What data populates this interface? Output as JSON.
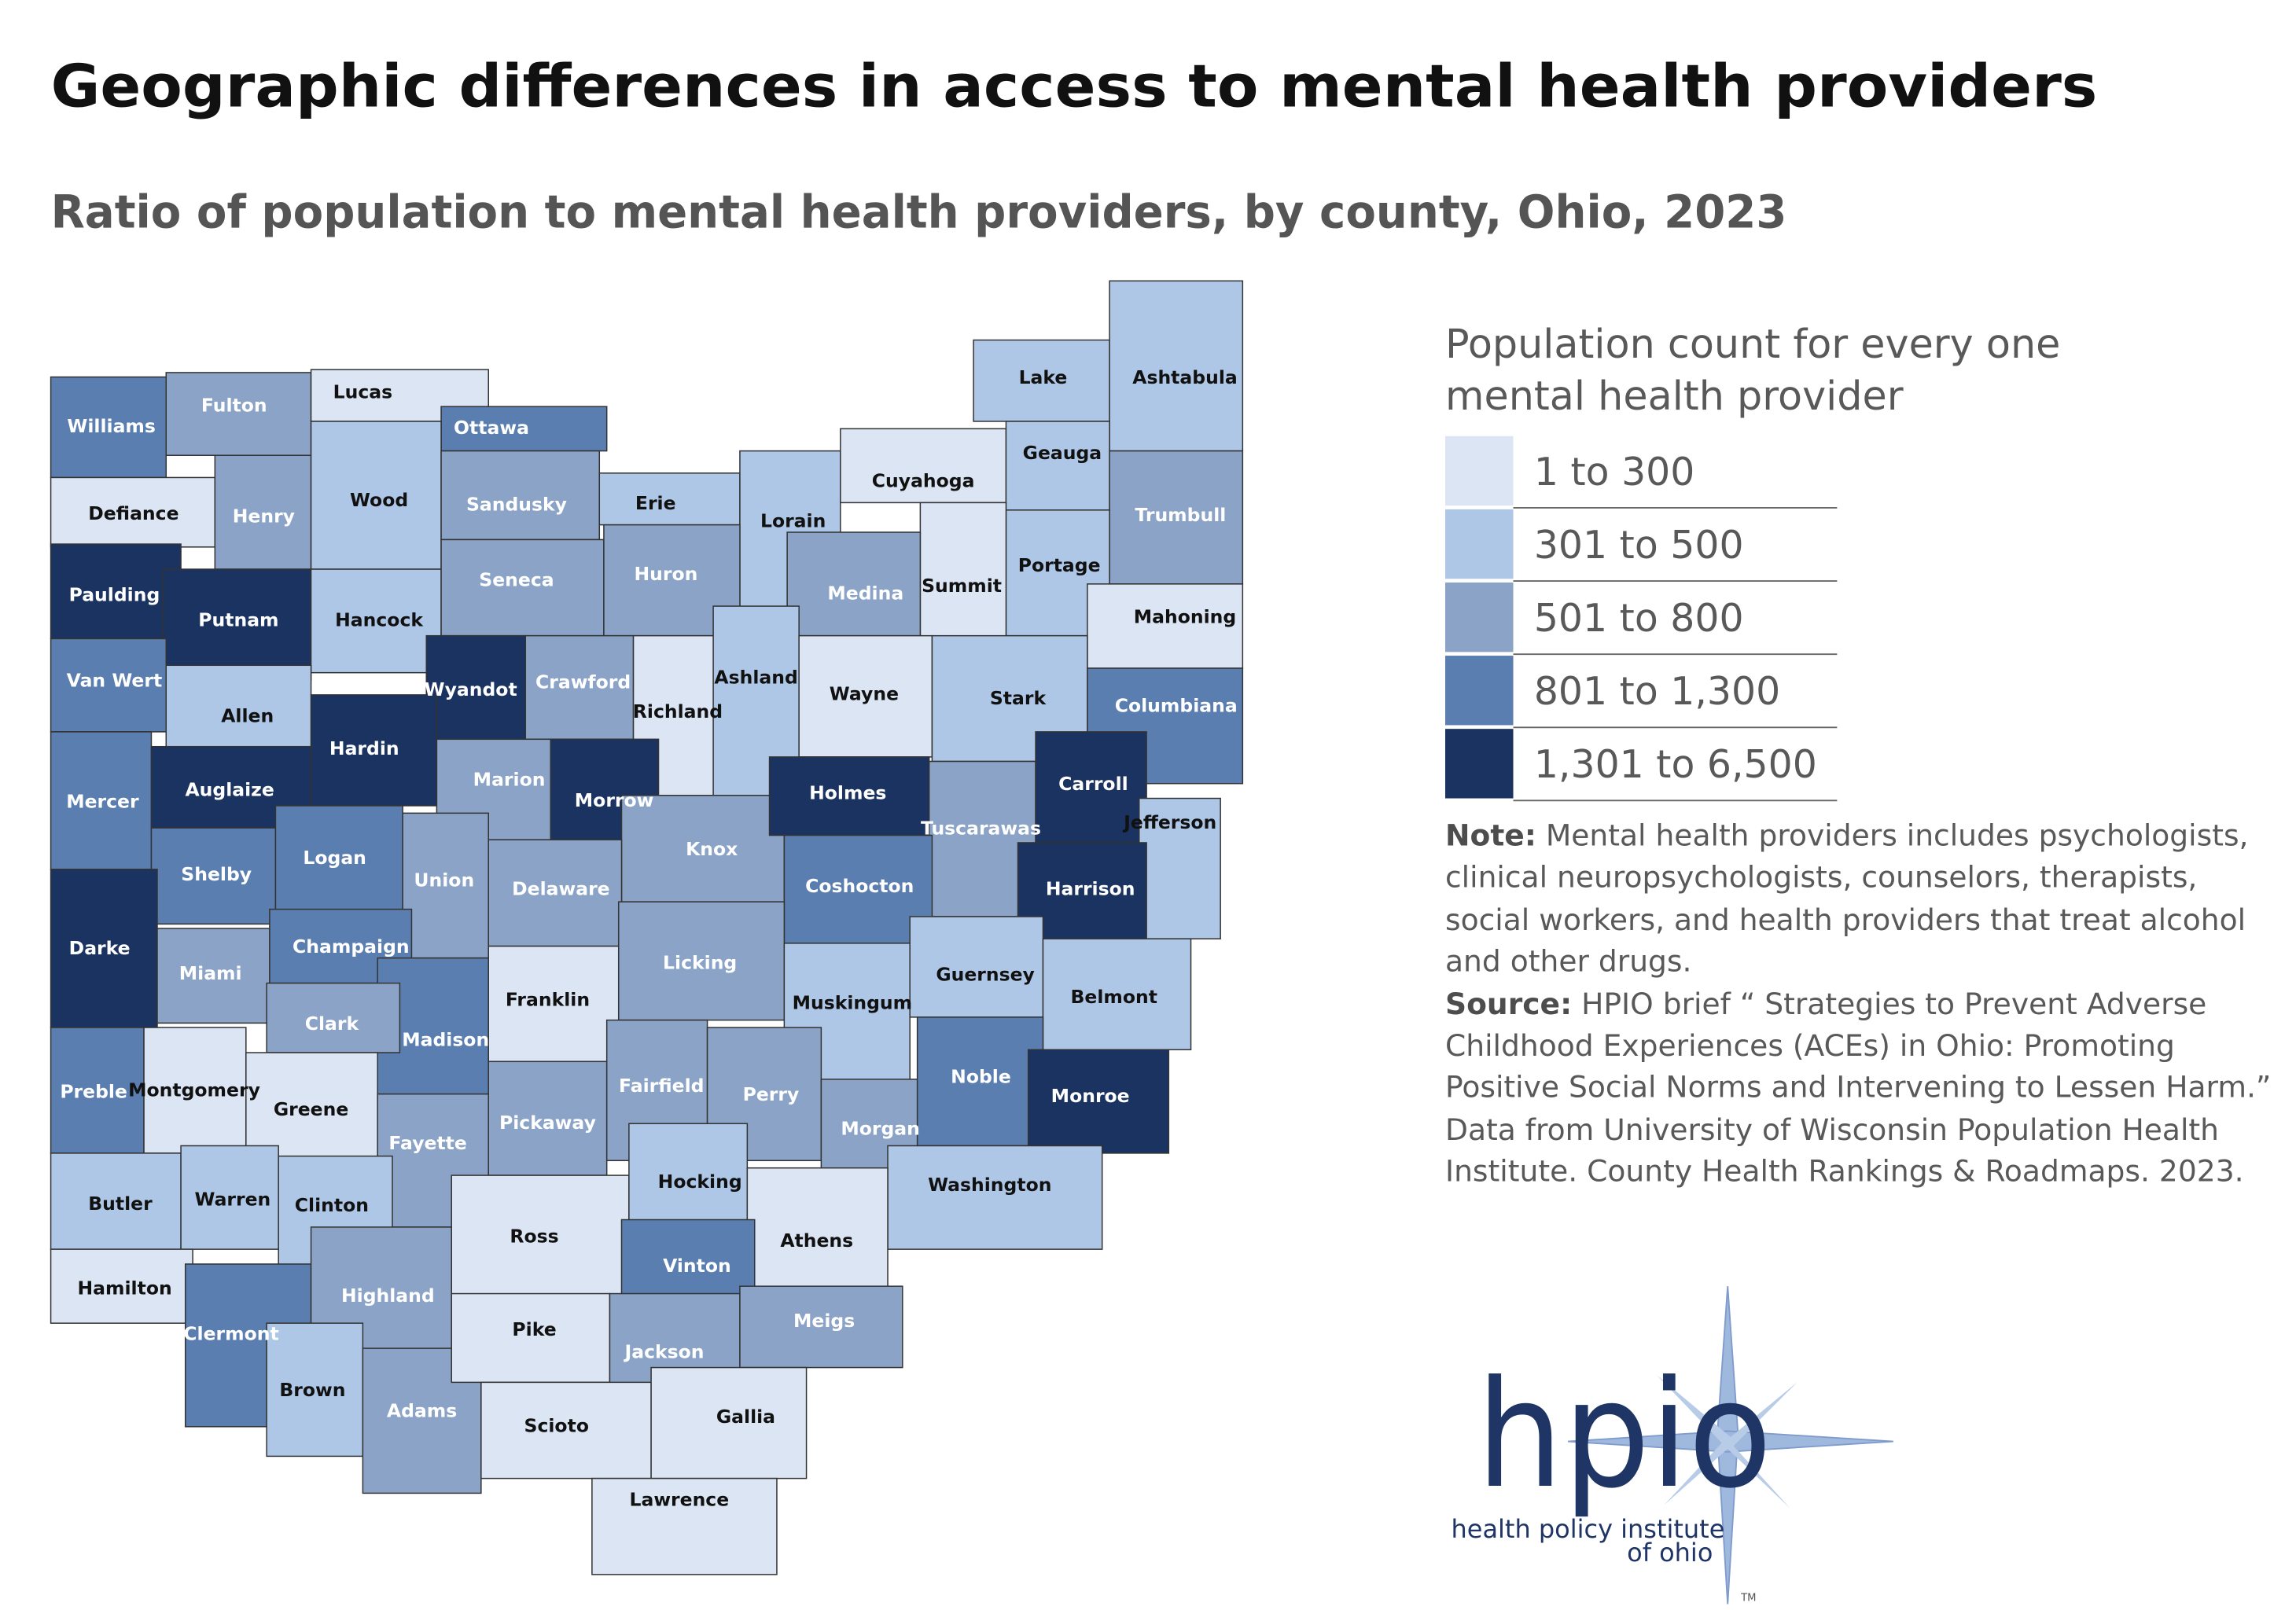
{
  "header": {
    "title": "Geographic differences in access to mental health providers",
    "subtitle": "Ratio of population to mental health providers, by county, Ohio, 2023"
  },
  "legend": {
    "title": "Population count for every one mental health provider",
    "items": [
      {
        "label": "1 to 300",
        "color": "#dbe5f3"
      },
      {
        "label": "301 to 500",
        "color": "#aec7e7"
      },
      {
        "label": "501 to 800",
        "color": "#8aa3c6"
      },
      {
        "label": "801 to 1,300",
        "color": "#5b7eb0"
      },
      {
        "label": "1,301 to 6,500",
        "color": "#1b3361"
      }
    ]
  },
  "note": {
    "label": "Note:",
    "text": "Mental health providers includes psychologists, clinical neuropsychologists, counselors, therapists, social workers, and health providers that treat alcohol and other drugs."
  },
  "source": {
    "label": "Source:",
    "text": "HPIO brief “ Strategies to Prevent Adverse Childhood Experiences (ACEs) in Ohio: Promoting Positive Social Norms and Intervening to Lessen Harm.” Data from University of Wisconsin Population Health Institute. County Health Rankings & Roadmaps. 2023."
  },
  "logo": {
    "name": "hpio",
    "tagline": [
      "health policy institute",
      "of ohio"
    ],
    "mark": "TM"
  },
  "counties": [
    {
      "name": "Williams",
      "bin": "801 to 1,300"
    },
    {
      "name": "Fulton",
      "bin": "501 to 800"
    },
    {
      "name": "Lucas",
      "bin": "1 to 300"
    },
    {
      "name": "Ottawa",
      "bin": "801 to 1,300"
    },
    {
      "name": "Defiance",
      "bin": "1 to 300"
    },
    {
      "name": "Henry",
      "bin": "501 to 800"
    },
    {
      "name": "Wood",
      "bin": "301 to 500"
    },
    {
      "name": "Sandusky",
      "bin": "501 to 800"
    },
    {
      "name": "Erie",
      "bin": "301 to 500"
    },
    {
      "name": "Lorain",
      "bin": "301 to 500"
    },
    {
      "name": "Cuyahoga",
      "bin": "1 to 300"
    },
    {
      "name": "Lake",
      "bin": "301 to 500"
    },
    {
      "name": "Ashtabula",
      "bin": "301 to 500"
    },
    {
      "name": "Geauga",
      "bin": "301 to 500"
    },
    {
      "name": "Trumbull",
      "bin": "501 to 800"
    },
    {
      "name": "Portage",
      "bin": "301 to 500"
    },
    {
      "name": "Summit",
      "bin": "1 to 300"
    },
    {
      "name": "Medina",
      "bin": "501 to 800"
    },
    {
      "name": "Mahoning",
      "bin": "1 to 300"
    },
    {
      "name": "Paulding",
      "bin": "1,301 to 6,500"
    },
    {
      "name": "Putnam",
      "bin": "1,301 to 6,500"
    },
    {
      "name": "Hancock",
      "bin": "301 to 500"
    },
    {
      "name": "Seneca",
      "bin": "501 to 800"
    },
    {
      "name": "Huron",
      "bin": "501 to 800"
    },
    {
      "name": "Van Wert",
      "bin": "801 to 1,300"
    },
    {
      "name": "Allen",
      "bin": "301 to 500"
    },
    {
      "name": "Wyandot",
      "bin": "1,301 to 6,500"
    },
    {
      "name": "Crawford",
      "bin": "501 to 800"
    },
    {
      "name": "Richland",
      "bin": "1 to 300"
    },
    {
      "name": "Ashland",
      "bin": "301 to 500"
    },
    {
      "name": "Wayne",
      "bin": "1 to 300"
    },
    {
      "name": "Stark",
      "bin": "301 to 500"
    },
    {
      "name": "Columbiana",
      "bin": "801 to 1,300"
    },
    {
      "name": "Mercer",
      "bin": "801 to 1,300"
    },
    {
      "name": "Auglaize",
      "bin": "1,301 to 6,500"
    },
    {
      "name": "Hardin",
      "bin": "1,301 to 6,500"
    },
    {
      "name": "Marion",
      "bin": "501 to 800"
    },
    {
      "name": "Morrow",
      "bin": "1,301 to 6,500"
    },
    {
      "name": "Knox",
      "bin": "501 to 800"
    },
    {
      "name": "Holmes",
      "bin": "1,301 to 6,500"
    },
    {
      "name": "Tuscarawas",
      "bin": "501 to 800"
    },
    {
      "name": "Carroll",
      "bin": "1,301 to 6,500"
    },
    {
      "name": "Jefferson",
      "bin": "301 to 500"
    },
    {
      "name": "Shelby",
      "bin": "801 to 1,300"
    },
    {
      "name": "Logan",
      "bin": "801 to 1,300"
    },
    {
      "name": "Union",
      "bin": "501 to 800"
    },
    {
      "name": "Delaware",
      "bin": "501 to 800"
    },
    {
      "name": "Coshocton",
      "bin": "801 to 1,300"
    },
    {
      "name": "Harrison",
      "bin": "1,301 to 6,500"
    },
    {
      "name": "Darke",
      "bin": "1,301 to 6,500"
    },
    {
      "name": "Miami",
      "bin": "501 to 800"
    },
    {
      "name": "Champaign",
      "bin": "801 to 1,300"
    },
    {
      "name": "Madison",
      "bin": "801 to 1,300"
    },
    {
      "name": "Franklin",
      "bin": "1 to 300"
    },
    {
      "name": "Licking",
      "bin": "501 to 800"
    },
    {
      "name": "Muskingum",
      "bin": "301 to 500"
    },
    {
      "name": "Guernsey",
      "bin": "301 to 500"
    },
    {
      "name": "Belmont",
      "bin": "301 to 500"
    },
    {
      "name": "Clark",
      "bin": "501 to 800"
    },
    {
      "name": "Preble",
      "bin": "801 to 1,300"
    },
    {
      "name": "Montgomery",
      "bin": "1 to 300"
    },
    {
      "name": "Greene",
      "bin": "1 to 300"
    },
    {
      "name": "Fayette",
      "bin": "501 to 800"
    },
    {
      "name": "Pickaway",
      "bin": "501 to 800"
    },
    {
      "name": "Fairfield",
      "bin": "501 to 800"
    },
    {
      "name": "Perry",
      "bin": "501 to 800"
    },
    {
      "name": "Morgan",
      "bin": "501 to 800"
    },
    {
      "name": "Noble",
      "bin": "801 to 1,300"
    },
    {
      "name": "Monroe",
      "bin": "1,301 to 6,500"
    },
    {
      "name": "Washington",
      "bin": "301 to 500"
    },
    {
      "name": "Butler",
      "bin": "301 to 500"
    },
    {
      "name": "Warren",
      "bin": "301 to 500"
    },
    {
      "name": "Clinton",
      "bin": "301 to 500"
    },
    {
      "name": "Ross",
      "bin": "1 to 300"
    },
    {
      "name": "Hocking",
      "bin": "301 to 500"
    },
    {
      "name": "Athens",
      "bin": "1 to 300"
    },
    {
      "name": "Vinton",
      "bin": "801 to 1,300"
    },
    {
      "name": "Hamilton",
      "bin": "1 to 300"
    },
    {
      "name": "Clermont",
      "bin": "801 to 1,300"
    },
    {
      "name": "Highland",
      "bin": "501 to 800"
    },
    {
      "name": "Brown",
      "bin": "301 to 500"
    },
    {
      "name": "Adams",
      "bin": "501 to 800"
    },
    {
      "name": "Pike",
      "bin": "1 to 300"
    },
    {
      "name": "Jackson",
      "bin": "501 to 800"
    },
    {
      "name": "Meigs",
      "bin": "501 to 800"
    },
    {
      "name": "Scioto",
      "bin": "1 to 300"
    },
    {
      "name": "Gallia",
      "bin": "1 to 300"
    },
    {
      "name": "Lawrence",
      "bin": "1 to 300"
    }
  ]
}
